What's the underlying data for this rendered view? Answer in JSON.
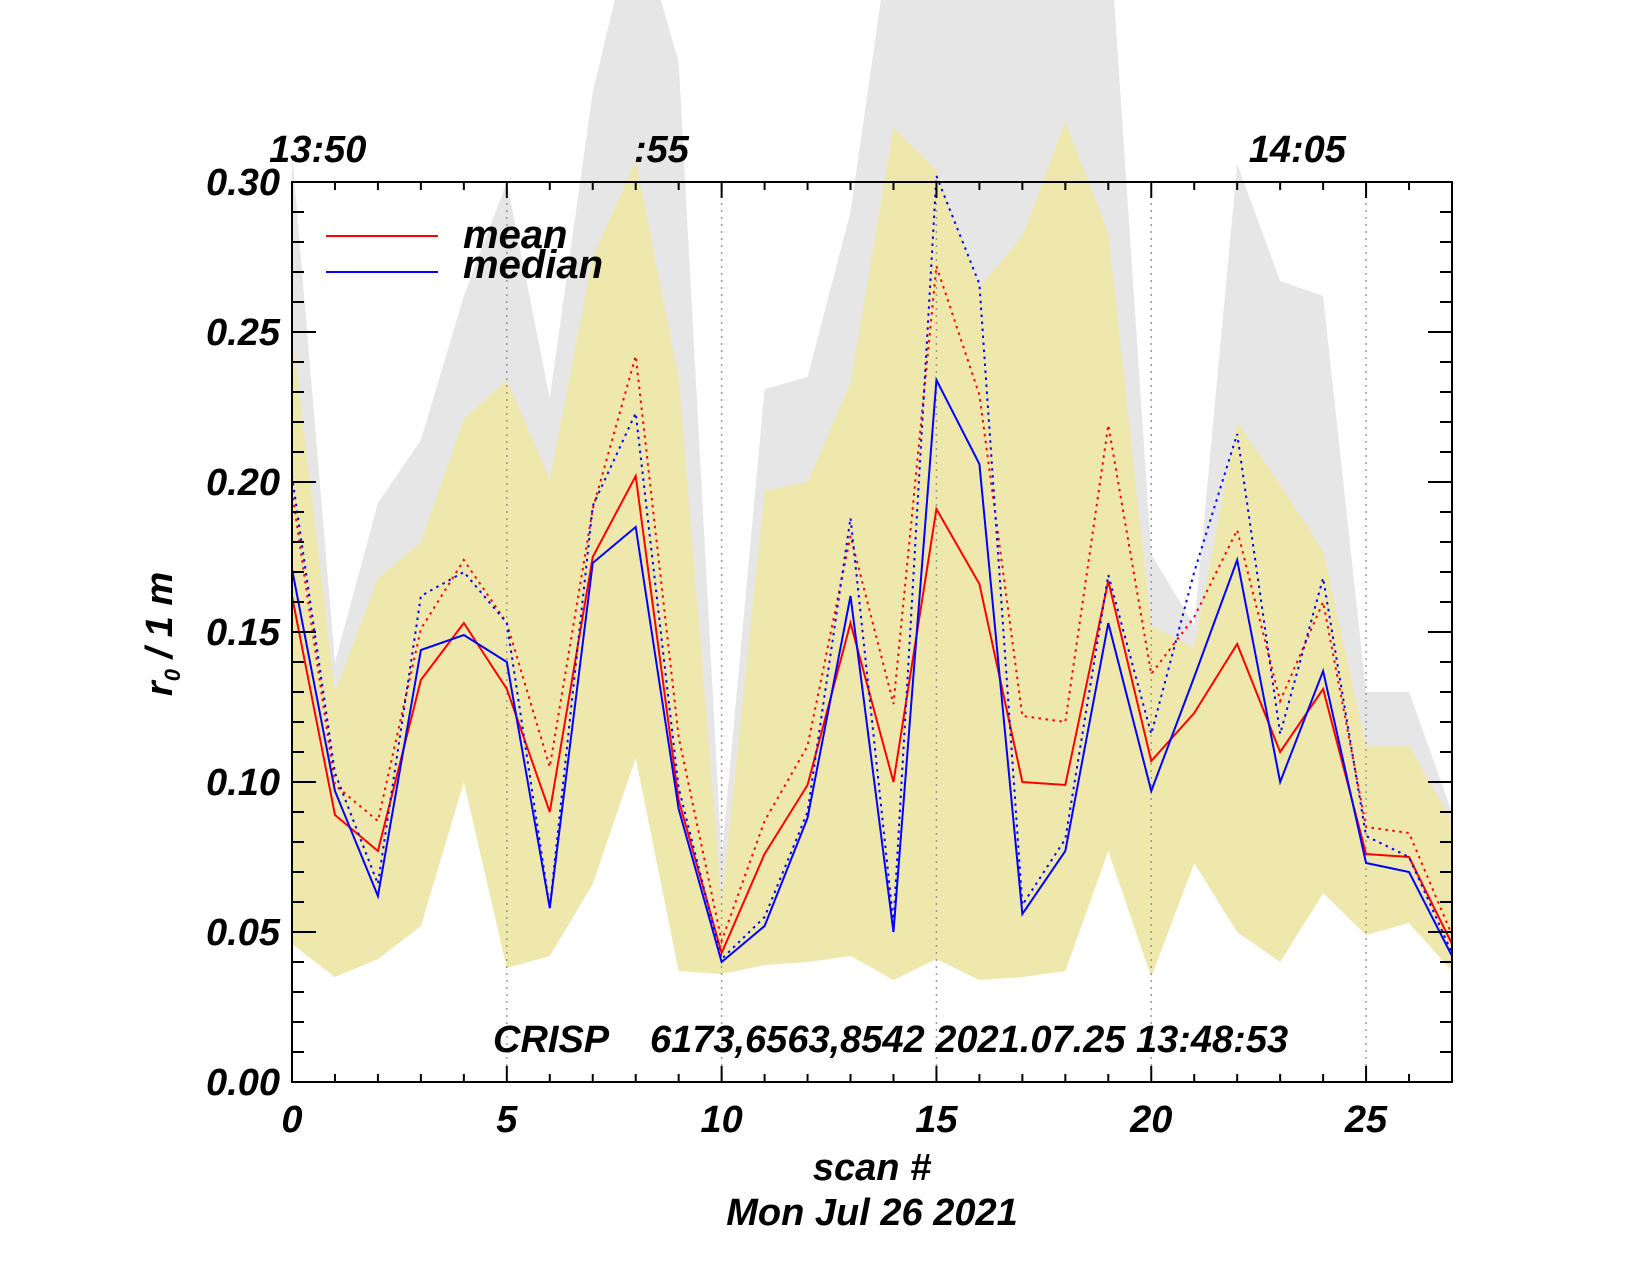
{
  "chart_data": {
    "type": "line",
    "xlabel": "scan #",
    "xsub": "Mon Jul 26 2021",
    "ylabel": "r",
    "ylabel_sub": "0",
    "ylabel_tail": " / 1 m",
    "annotation": "CRISP    6173,6563,8542 2021.07.25 13:48:53",
    "xlim": [
      0,
      27
    ],
    "ylim": [
      0,
      0.3
    ],
    "x_ticks": [
      0,
      5,
      10,
      15,
      20,
      25
    ],
    "x_tick_labels": [
      "0",
      "5",
      "10",
      "15",
      "20",
      "25"
    ],
    "y_ticks": [
      0.0,
      0.05,
      0.1,
      0.15,
      0.2,
      0.25,
      0.3
    ],
    "y_tick_labels": [
      "0.00",
      "0.05",
      "0.10",
      "0.15",
      "0.20",
      "0.25",
      "0.30"
    ],
    "top_time_labels": [
      {
        "x": 0.6,
        "label": "13:50"
      },
      {
        "x": 8.6,
        "label": ":55"
      },
      {
        "x": 23.4,
        "label": "14:05"
      }
    ],
    "time_marker_x": [
      5,
      10,
      15,
      20,
      25
    ],
    "x": [
      0,
      1,
      2,
      3,
      4,
      5,
      6,
      7,
      8,
      9,
      10,
      11,
      12,
      13,
      14,
      15,
      16,
      17,
      18,
      19,
      20,
      21,
      22,
      23,
      24,
      25,
      26,
      27
    ],
    "bands": [
      {
        "name": "outer-range",
        "color": "#e6e6e6",
        "upper": [
          0.31,
          0.14,
          0.193,
          0.214,
          0.262,
          0.3,
          0.228,
          0.33,
          0.39,
          0.34,
          0.075,
          0.231,
          0.235,
          0.29,
          0.39,
          0.39,
          0.39,
          0.39,
          0.39,
          0.39,
          0.176,
          0.152,
          0.306,
          0.267,
          0.262,
          0.13,
          0.13,
          0.09
        ],
        "lower": [
          0.046,
          0.035,
          0.041,
          0.052,
          0.1,
          0.038,
          0.042,
          0.066,
          0.108,
          0.037,
          0.036,
          0.039,
          0.04,
          0.042,
          0.034,
          0.041,
          0.034,
          0.035,
          0.037,
          0.077,
          0.035,
          0.073,
          0.05,
          0.04,
          0.063,
          0.049,
          0.053,
          0.037
        ]
      },
      {
        "name": "inner-range",
        "color": "#efe8ac",
        "upper": [
          0.25,
          0.13,
          0.168,
          0.18,
          0.221,
          0.234,
          0.201,
          0.275,
          0.307,
          0.235,
          0.06,
          0.197,
          0.2,
          0.233,
          0.318,
          0.304,
          0.265,
          0.282,
          0.32,
          0.283,
          0.152,
          0.145,
          0.22,
          0.199,
          0.177,
          0.112,
          0.112,
          0.087
        ],
        "lower": [
          0.046,
          0.035,
          0.041,
          0.052,
          0.1,
          0.038,
          0.042,
          0.066,
          0.108,
          0.037,
          0.036,
          0.039,
          0.04,
          0.042,
          0.034,
          0.041,
          0.034,
          0.035,
          0.037,
          0.077,
          0.035,
          0.073,
          0.05,
          0.04,
          0.063,
          0.049,
          0.053,
          0.037
        ]
      }
    ],
    "series": [
      {
        "name": "mean",
        "color": "#ff0000",
        "style": "solid",
        "values": [
          0.162,
          0.089,
          0.077,
          0.134,
          0.153,
          0.131,
          0.09,
          0.175,
          0.202,
          0.094,
          0.043,
          0.076,
          0.099,
          0.153,
          0.1,
          0.191,
          0.166,
          0.1,
          0.099,
          0.167,
          0.107,
          0.123,
          0.146,
          0.11,
          0.131,
          0.076,
          0.075,
          0.046
        ]
      },
      {
        "name": "median",
        "color": "#0000ff",
        "style": "solid",
        "values": [
          0.171,
          0.097,
          0.062,
          0.144,
          0.149,
          0.14,
          0.058,
          0.173,
          0.185,
          0.091,
          0.04,
          0.052,
          0.088,
          0.162,
          0.05,
          0.234,
          0.206,
          0.056,
          0.077,
          0.153,
          0.097,
          0.135,
          0.174,
          0.1,
          0.137,
          0.073,
          0.07,
          0.042
        ]
      },
      {
        "color": "#ff0000",
        "style": "dotted",
        "values": [
          0.197,
          0.099,
          0.087,
          0.151,
          0.174,
          0.153,
          0.105,
          0.191,
          0.242,
          0.115,
          0.047,
          0.087,
          0.112,
          0.182,
          0.126,
          0.272,
          0.229,
          0.122,
          0.12,
          0.219,
          0.136,
          0.155,
          0.184,
          0.127,
          0.16,
          0.085,
          0.083,
          0.049
        ]
      },
      {
        "color": "#0000ff",
        "style": "dotted",
        "values": [
          0.202,
          0.103,
          0.066,
          0.162,
          0.17,
          0.153,
          0.058,
          0.192,
          0.223,
          0.098,
          0.041,
          0.055,
          0.09,
          0.188,
          0.053,
          0.302,
          0.266,
          0.059,
          0.081,
          0.169,
          0.116,
          0.17,
          0.216,
          0.116,
          0.168,
          0.082,
          0.075,
          0.043
        ]
      }
    ],
    "legend": [
      {
        "label": "mean",
        "color": "#ff0000"
      },
      {
        "label": "median",
        "color": "#0000ff"
      }
    ]
  }
}
